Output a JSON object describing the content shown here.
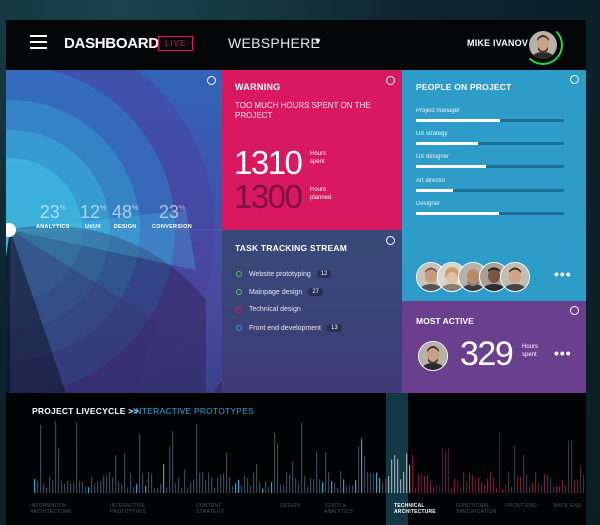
{
  "header": {
    "title": "DASHBOARD",
    "live_badge": "LIVE",
    "project_name": "WEBSPHERE",
    "user_name": "MIKE IVANOV"
  },
  "overview": {
    "stats": [
      {
        "value": "23",
        "unit": "%",
        "label": "ANALYTICS"
      },
      {
        "value": "12",
        "unit": "%",
        "label": "UI/UX"
      },
      {
        "value": "48",
        "unit": "%",
        "label": "DESIGN"
      },
      {
        "value": "23",
        "unit": "%",
        "label": "CONVERSION"
      }
    ]
  },
  "warning": {
    "title": "WARNING",
    "message": "TOO MUCH HOURS SPENT ON THE PROJECT",
    "spent_value": "1310",
    "spent_unit": "Hours spent",
    "planned_value": "1300",
    "planned_unit": "Hours planned"
  },
  "task_stream": {
    "title": "TASK TRACKING STREAM",
    "items": [
      {
        "label": "Website prototyping",
        "count": "12",
        "color": "#39d04a"
      },
      {
        "label": "Mainpage design",
        "count": "27",
        "color": "#39d04a"
      },
      {
        "label": "Technical design",
        "count": "",
        "color": "#d8185f"
      },
      {
        "label": "Front end development",
        "count": "13",
        "color": "#2aa6d6"
      }
    ]
  },
  "people": {
    "title": "PEOPLE ON PROJECT",
    "roles": [
      {
        "label": "Project manager",
        "progress": 0.57
      },
      {
        "label": "UX strategy",
        "progress": 0.42
      },
      {
        "label": "UX designer",
        "progress": 0.47
      },
      {
        "label": "Art director",
        "progress": 0.25
      },
      {
        "label": "Designer",
        "progress": 0.56
      }
    ]
  },
  "most_active": {
    "title": "MOST ACTIVE",
    "value": "329",
    "unit": "Hours spent"
  },
  "lifecycle": {
    "title": "PROJECT LIVECYCLE >>",
    "subtitle": "INTERACTIVE PROTOTYPES",
    "phases": [
      {
        "label": "INFORMATION ARCHITECTURE",
        "active": false
      },
      {
        "label": "INTERACTIVE PROTOTYPES",
        "active": false
      },
      {
        "label": "CONTENT STRATEGY",
        "active": false
      },
      {
        "label": "DESIGN",
        "active": false
      },
      {
        "label": "TESTS & ANALYTICS",
        "active": false
      },
      {
        "label": "TECHNICAL ARCHITECTURE",
        "active": true
      },
      {
        "label": "FUNCTIONAL SPECIFICATION",
        "active": false
      },
      {
        "label": "FRONT-END",
        "active": false
      },
      {
        "label": "BACK-END",
        "active": false
      }
    ]
  },
  "colors": {
    "accent_pink": "#d8185f",
    "accent_blue": "#2aa6d6",
    "accent_green": "#39d04a",
    "accent_purple": "#6a3f8e"
  }
}
